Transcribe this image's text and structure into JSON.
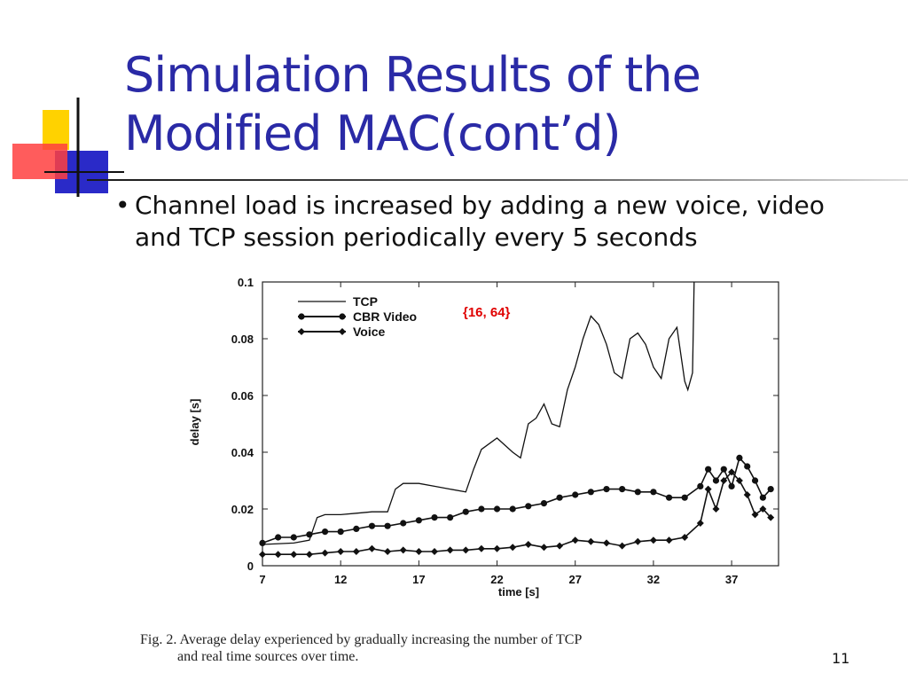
{
  "slide": {
    "title_line1": "Simulation Results of the",
    "title_line2": "Modified MAC(cont’d)",
    "bullet_line1": "Channel load is increased by adding a new voice, video",
    "bullet_line2": "and TCP session periodically every 5 seconds",
    "caption_line1": "Fig. 2.   Average delay experienced by gradually increasing the number of TCP",
    "caption_line2": "and real time sources over time.",
    "page_number": "11"
  },
  "colors": {
    "title": "#2a2aa6",
    "annotation": "#e00000",
    "deco_yellow": "#ffd200",
    "deco_blue": "#2a2ac8",
    "deco_red": "#ff3b3b"
  },
  "chart_data": {
    "type": "line",
    "xlabel": "time [s]",
    "ylabel": "delay [s]",
    "xlim": [
      7,
      40
    ],
    "ylim": [
      0,
      0.1
    ],
    "xticks": [
      7,
      12,
      17,
      22,
      27,
      32,
      37
    ],
    "yticks": [
      0,
      0.02,
      0.04,
      0.06,
      0.08,
      0.1
    ],
    "ytick_labels": [
      "0",
      "0.02",
      "0.04",
      "0.06",
      "0.08",
      "0.1"
    ],
    "legend_position": "top-left",
    "grid": false,
    "annotation": "{16, 64}",
    "series": [
      {
        "name": "TCP",
        "marker": "none",
        "x": [
          7,
          9,
          10,
          10.5,
          11,
          12,
          13,
          14,
          15,
          15.5,
          16,
          17,
          18,
          19,
          20,
          20.5,
          21,
          22,
          23,
          23.5,
          24,
          24.5,
          25,
          25.5,
          26,
          26.5,
          27,
          27.5,
          28,
          28.5,
          29,
          29.5,
          30,
          30.5,
          31,
          31.5,
          32,
          32.5,
          33,
          33.5,
          34,
          34.2,
          34.5,
          34.6
        ],
        "y": [
          0.0075,
          0.008,
          0.009,
          0.017,
          0.018,
          0.018,
          0.0185,
          0.019,
          0.019,
          0.027,
          0.029,
          0.029,
          0.028,
          0.027,
          0.026,
          0.034,
          0.041,
          0.045,
          0.04,
          0.038,
          0.05,
          0.052,
          0.057,
          0.05,
          0.049,
          0.062,
          0.07,
          0.08,
          0.088,
          0.085,
          0.078,
          0.068,
          0.066,
          0.08,
          0.082,
          0.078,
          0.07,
          0.066,
          0.08,
          0.084,
          0.065,
          0.062,
          0.068,
          0.1
        ]
      },
      {
        "name": "CBR Video",
        "marker": "circle",
        "x": [
          7,
          8,
          9,
          10,
          11,
          12,
          13,
          14,
          15,
          16,
          17,
          18,
          19,
          20,
          21,
          22,
          23,
          24,
          25,
          26,
          27,
          28,
          29,
          30,
          31,
          32,
          33,
          34,
          35,
          35.5,
          36,
          36.5,
          37,
          37.5,
          38,
          38.5,
          39,
          39.5
        ],
        "y": [
          0.008,
          0.01,
          0.01,
          0.011,
          0.012,
          0.012,
          0.013,
          0.014,
          0.014,
          0.015,
          0.016,
          0.017,
          0.017,
          0.019,
          0.02,
          0.02,
          0.02,
          0.021,
          0.022,
          0.024,
          0.025,
          0.026,
          0.027,
          0.027,
          0.026,
          0.026,
          0.024,
          0.024,
          0.028,
          0.034,
          0.03,
          0.034,
          0.028,
          0.038,
          0.035,
          0.03,
          0.024,
          0.027
        ]
      },
      {
        "name": "Voice",
        "marker": "diamond",
        "x": [
          7,
          8,
          9,
          10,
          11,
          12,
          13,
          14,
          15,
          16,
          17,
          18,
          19,
          20,
          21,
          22,
          23,
          24,
          25,
          26,
          27,
          28,
          29,
          30,
          31,
          32,
          33,
          34,
          35,
          35.5,
          36,
          36.5,
          37,
          37.5,
          38,
          38.5,
          39,
          39.5
        ],
        "y": [
          0.004,
          0.004,
          0.004,
          0.004,
          0.0045,
          0.005,
          0.005,
          0.006,
          0.005,
          0.0055,
          0.005,
          0.005,
          0.0055,
          0.0055,
          0.006,
          0.006,
          0.0065,
          0.0075,
          0.0065,
          0.007,
          0.009,
          0.0085,
          0.008,
          0.007,
          0.0085,
          0.009,
          0.009,
          0.01,
          0.015,
          0.027,
          0.02,
          0.03,
          0.033,
          0.03,
          0.025,
          0.018,
          0.02,
          0.017
        ]
      }
    ]
  }
}
